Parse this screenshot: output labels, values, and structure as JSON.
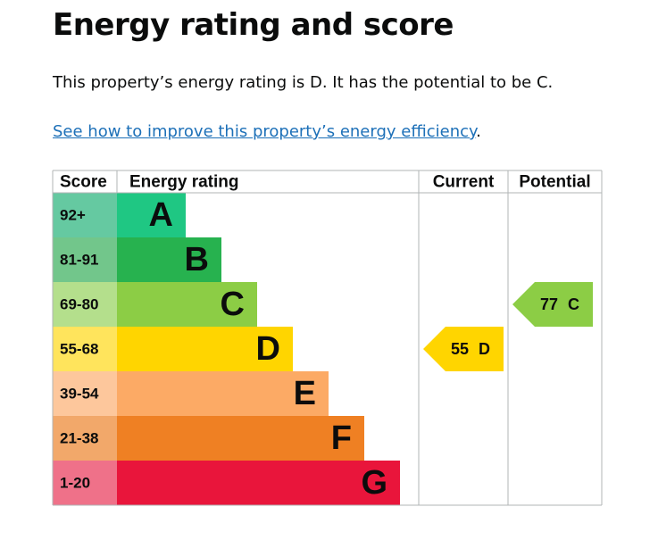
{
  "header": {
    "title": "Energy rating and score"
  },
  "summary": "This property’s energy rating is D. It has the potential to be C.",
  "link": {
    "text": "See how to improve this property’s energy efficiency",
    "suffix": "."
  },
  "table": {
    "headers": [
      "Score",
      "Energy rating",
      "Current",
      "Potential"
    ],
    "bands": [
      {
        "score": "92+",
        "letter": "A",
        "color": "#1fc783",
        "score_color": "#65c9a1"
      },
      {
        "score": "81-91",
        "letter": "B",
        "color": "#27b24f",
        "score_color": "#72c68b"
      },
      {
        "score": "69-80",
        "letter": "C",
        "color": "#8ccd45",
        "score_color": "#b4df8c"
      },
      {
        "score": "55-68",
        "letter": "D",
        "color": "#ffd500",
        "score_color": "#ffe45c"
      },
      {
        "score": "39-54",
        "letter": "E",
        "color": "#fcaa65",
        "score_color": "#fdc79c"
      },
      {
        "score": "21-38",
        "letter": "F",
        "color": "#ef8023",
        "score_color": "#f2a86a"
      },
      {
        "score": "1-20",
        "letter": "G",
        "color": "#e9153b",
        "score_color": "#ef7189"
      }
    ],
    "current": {
      "score": 55,
      "letter": "D"
    },
    "potential": {
      "score": 77,
      "letter": "C"
    }
  }
}
